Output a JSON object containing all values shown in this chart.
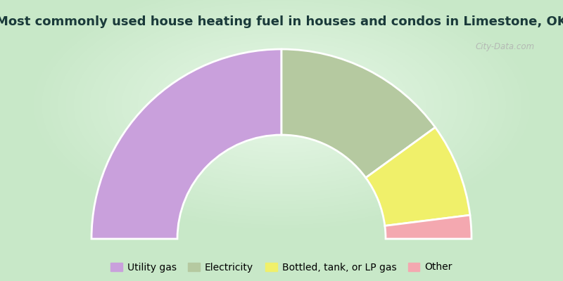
{
  "title": "Most commonly used house heating fuel in houses and condos in Limestone, OK",
  "segments": [
    {
      "label": "Utility gas",
      "value": 50.0,
      "color": "#c9a0dc"
    },
    {
      "label": "Electricity",
      "value": 30.0,
      "color": "#b5c9a0"
    },
    {
      "label": "Bottled, tank, or LP gas",
      "value": 16.0,
      "color": "#f0f06a"
    },
    {
      "label": "Other",
      "value": 4.0,
      "color": "#f4a8b0"
    }
  ],
  "background_color_outer": "#c8e8c8",
  "background_color_inner": "#e8f8e8",
  "title_color": "#1a3a3a",
  "title_fontsize": 13,
  "legend_fontsize": 10,
  "watermark": "City-Data.com"
}
